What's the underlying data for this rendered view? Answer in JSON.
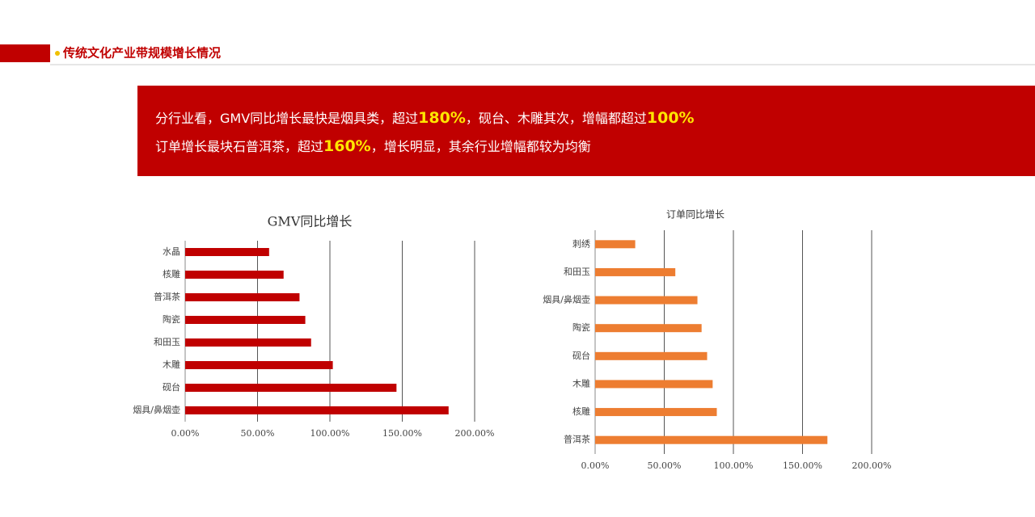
{
  "header": {
    "title": "传统文化产业带规模增长情况"
  },
  "banner": {
    "lines": [
      [
        {
          "text": "分行业看，GMV同比增长最快是烟具类，超过"
        },
        {
          "text": "180%",
          "emphasis": true
        },
        {
          "text": "，砚台、木雕其次，增幅都超过"
        },
        {
          "text": "100%",
          "emphasis": true
        }
      ],
      [
        {
          "text": "订单增长最块石普洱茶，超过"
        },
        {
          "text": "160%",
          "emphasis": true
        },
        {
          "text": "，增长明显，其余行业增幅都较为均衡"
        }
      ]
    ]
  },
  "chart_data": [
    {
      "type": "hbar",
      "title": "GMV同比增长",
      "color": "#c00000",
      "grid": true,
      "categories": [
        "水晶",
        "核雕",
        "普洱茶",
        "陶瓷",
        "和田玉",
        "木雕",
        "砚台",
        "烟具/鼻烟壶"
      ],
      "values": [
        58,
        68,
        79,
        83,
        87,
        102,
        146,
        182
      ],
      "xlim": [
        0,
        200
      ],
      "xticks": [
        {
          "value": 0,
          "label": "0.00%"
        },
        {
          "value": 50,
          "label": "50.00%"
        },
        {
          "value": 100,
          "label": "100.00%"
        },
        {
          "value": 150,
          "label": "150.00%"
        },
        {
          "value": 200,
          "label": "200.00%"
        }
      ]
    },
    {
      "type": "hbar",
      "title": "订单同比增长",
      "color": "#ed7d31",
      "grid": true,
      "categories": [
        "刺绣",
        "和田玉",
        "烟具/鼻烟壶",
        "陶瓷",
        "砚台",
        "木雕",
        "核雕",
        "普洱茶"
      ],
      "values": [
        29,
        58,
        74,
        77,
        81,
        85,
        88,
        168
      ],
      "xlim": [
        0,
        200
      ],
      "xticks": [
        {
          "value": 0,
          "label": "0.00%"
        },
        {
          "value": 50,
          "label": "50.00%"
        },
        {
          "value": 100,
          "label": "100.00%"
        },
        {
          "value": 150,
          "label": "150.00%"
        },
        {
          "value": 200,
          "label": "200.00%"
        }
      ]
    }
  ]
}
